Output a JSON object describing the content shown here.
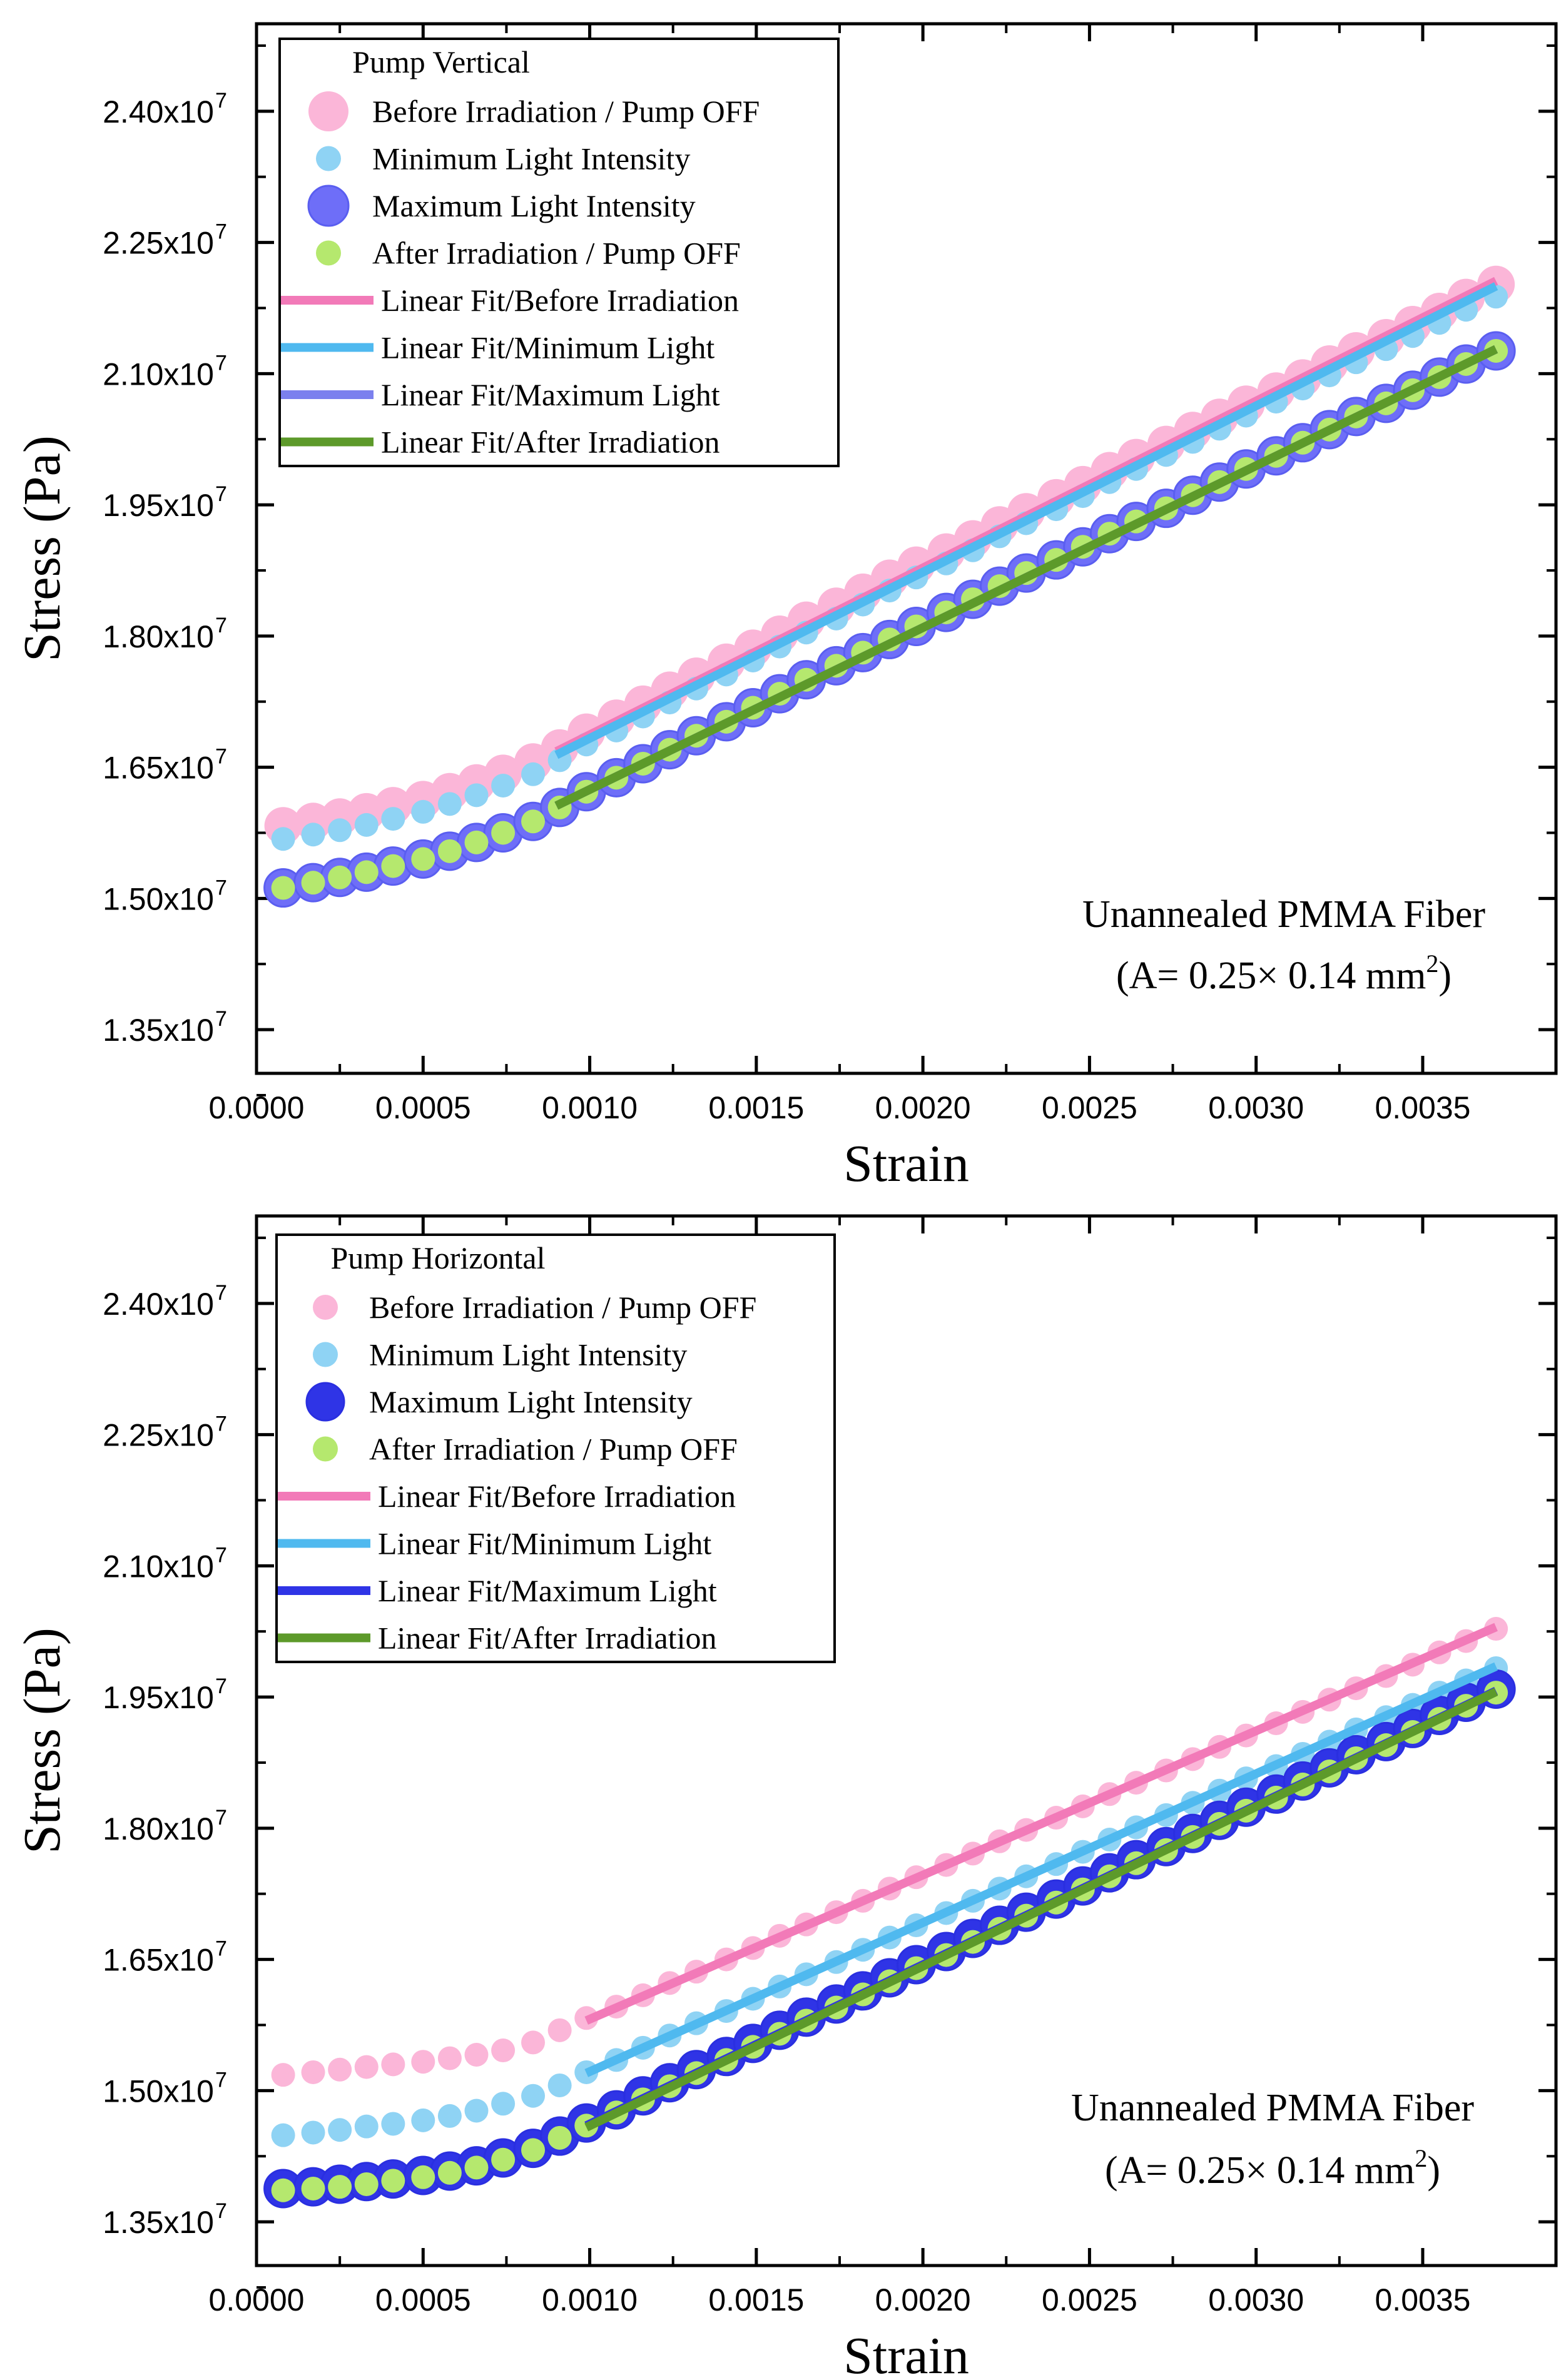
{
  "chart_data": [
    {
      "type": "scatter",
      "title": "",
      "xlabel": "Strain",
      "ylabel": "Stress (Pa)",
      "xlim": [
        0.0,
        0.0039
      ],
      "ylim": [
        13000000,
        25000000
      ],
      "xticks": [
        0.0,
        0.0005,
        0.001,
        0.0015,
        0.002,
        0.0025,
        0.003,
        0.0035
      ],
      "xtick_labels": [
        "0.0000",
        "0.0005",
        "0.0010",
        "0.0015",
        "0.0020",
        "0.0025",
        "0.0030",
        "0.0035"
      ],
      "yticks": [
        13500000,
        15000000,
        16500000,
        18000000,
        19500000,
        21000000,
        22500000,
        24000000
      ],
      "ytick_mantissas": [
        "1.35x10",
        "1.50x10",
        "1.65x10",
        "1.80x10",
        "1.95x10",
        "2.10x10",
        "2.25x10",
        "2.40x10"
      ],
      "ytick_exponent": "7",
      "legend_title": "Pump Vertical",
      "annotation_line1": "Unannealed  PMMA Fiber",
      "annotation_line2": "(A= 0.25× 0.14 mm",
      "annotation_sup": "2",
      "annotation_close": ")",
      "x": [
        8e-05,
        0.00017,
        0.00025,
        0.00033,
        0.00041,
        0.0005,
        0.00058,
        0.00066,
        0.00074,
        0.00083,
        0.00091,
        0.00099,
        0.00108,
        0.00116,
        0.00124,
        0.00132,
        0.00141,
        0.00149,
        0.00157,
        0.00165,
        0.00174,
        0.00182,
        0.0019,
        0.00198,
        0.00207,
        0.00215,
        0.00223,
        0.00231,
        0.0024,
        0.00248,
        0.00256,
        0.00264,
        0.00273,
        0.00281,
        0.00289,
        0.00297,
        0.00306,
        0.00314,
        0.00322,
        0.0033,
        0.00339,
        0.00347,
        0.00355,
        0.00363,
        0.00372
      ],
      "series": [
        {
          "name": "Before Irradiation / Pump OFF",
          "color": "#fbb6d8",
          "size": "large",
          "values": [
            15830000,
            15880000,
            15930000,
            15990000,
            16060000,
            16130000,
            16220000,
            16320000,
            16430000,
            16560000,
            16720000,
            16900000,
            17060000,
            17220000,
            17380000,
            17540000,
            17700000,
            17860000,
            18020000,
            18180000,
            18340000,
            18500000,
            18660000,
            18810000,
            18960000,
            19110000,
            19270000,
            19420000,
            19580000,
            19730000,
            19890000,
            20040000,
            20190000,
            20350000,
            20500000,
            20650000,
            20800000,
            20950000,
            21110000,
            21260000,
            21410000,
            21560000,
            21710000,
            21870000,
            22020000
          ]
        },
        {
          "name": "Minimum Light Intensity",
          "color": "#8fd3f4",
          "size": "small",
          "values": [
            15680000,
            15730000,
            15780000,
            15840000,
            15910000,
            15990000,
            16080000,
            16180000,
            16290000,
            16420000,
            16580000,
            16760000,
            16920000,
            17080000,
            17240000,
            17400000,
            17560000,
            17720000,
            17880000,
            18040000,
            18200000,
            18360000,
            18520000,
            18670000,
            18830000,
            18980000,
            19140000,
            19290000,
            19450000,
            19600000,
            19760000,
            19910000,
            20070000,
            20220000,
            20370000,
            20520000,
            20680000,
            20830000,
            20980000,
            21130000,
            21280000,
            21430000,
            21580000,
            21730000,
            21880000
          ]
        },
        {
          "name": "Maximum Light Intensity",
          "color": "#6e6ef8",
          "size": "large",
          "values": [
            15120000,
            15180000,
            15240000,
            15300000,
            15370000,
            15450000,
            15540000,
            15640000,
            15750000,
            15880000,
            16040000,
            16220000,
            16380000,
            16540000,
            16700000,
            16860000,
            17020000,
            17180000,
            17340000,
            17500000,
            17660000,
            17810000,
            17960000,
            18110000,
            18270000,
            18420000,
            18570000,
            18720000,
            18870000,
            19020000,
            19170000,
            19310000,
            19460000,
            19610000,
            19760000,
            19910000,
            20060000,
            20210000,
            20360000,
            20510000,
            20660000,
            20810000,
            20960000,
            21110000,
            21260000
          ]
        },
        {
          "name": "After Irradiation / Pump OFF",
          "color": "#b5e86e",
          "size": "small",
          "values": [
            15120000,
            15180000,
            15240000,
            15300000,
            15370000,
            15450000,
            15540000,
            15640000,
            15750000,
            15880000,
            16040000,
            16220000,
            16380000,
            16540000,
            16700000,
            16860000,
            17020000,
            17180000,
            17340000,
            17500000,
            17660000,
            17810000,
            17960000,
            18110000,
            18270000,
            18420000,
            18570000,
            18720000,
            18870000,
            19020000,
            19170000,
            19310000,
            19460000,
            19610000,
            19760000,
            19910000,
            20060000,
            20210000,
            20360000,
            20510000,
            20660000,
            20810000,
            20960000,
            21110000,
            21260000
          ]
        }
      ],
      "fits": [
        {
          "name": "Linear Fit/Before Irradiation",
          "color": "#f27ab8",
          "x": [
            0.0009,
            0.00372
          ],
          "y": [
            16680000,
            22060000
          ]
        },
        {
          "name": "Linear Fit/Minimum Light",
          "color": "#4fb9ef",
          "x": [
            0.0009,
            0.00372
          ],
          "y": [
            16640000,
            22000000
          ]
        },
        {
          "name": "Linear Fit/Maximum Light",
          "color": "#7b80ee",
          "x": [
            0.0009,
            0.00372
          ],
          "y": [
            16060000,
            21280000
          ]
        },
        {
          "name": "Linear Fit/After Irradiation",
          "color": "#5d9a2a",
          "x": [
            0.0009,
            0.00372
          ],
          "y": [
            16060000,
            21280000
          ]
        }
      ]
    },
    {
      "type": "scatter",
      "title": "",
      "xlabel": "Strain",
      "ylabel": "Stress (Pa)",
      "xlim": [
        0.0,
        0.0039
      ],
      "ylim": [
        13000000,
        25000000
      ],
      "xticks": [
        0.0,
        0.0005,
        0.001,
        0.0015,
        0.002,
        0.0025,
        0.003,
        0.0035
      ],
      "xtick_labels": [
        "0.0000",
        "0.0005",
        "0.0010",
        "0.0015",
        "0.0020",
        "0.0025",
        "0.0030",
        "0.0035"
      ],
      "yticks": [
        13500000,
        15000000,
        16500000,
        18000000,
        19500000,
        21000000,
        22500000,
        24000000
      ],
      "ytick_mantissas": [
        "1.35x10",
        "1.50x10",
        "1.65x10",
        "1.80x10",
        "1.95x10",
        "2.10x10",
        "2.25x10",
        "2.40x10"
      ],
      "ytick_exponent": "7",
      "legend_title": "Pump Horizontal",
      "annotation_line1": "Unannealed  PMMA Fiber",
      "annotation_line2": "(A= 0.25× 0.14 mm",
      "annotation_sup": "2",
      "annotation_close": ")",
      "x": [
        8e-05,
        0.00017,
        0.00025,
        0.00033,
        0.00041,
        0.0005,
        0.00058,
        0.00066,
        0.00074,
        0.00083,
        0.00091,
        0.00099,
        0.00108,
        0.00116,
        0.00124,
        0.00132,
        0.00141,
        0.00149,
        0.00157,
        0.00165,
        0.00174,
        0.00182,
        0.0019,
        0.00198,
        0.00207,
        0.00215,
        0.00223,
        0.00231,
        0.0024,
        0.00248,
        0.00256,
        0.00264,
        0.00273,
        0.00281,
        0.00289,
        0.00297,
        0.00306,
        0.00314,
        0.00322,
        0.0033,
        0.00339,
        0.00347,
        0.00355,
        0.00363,
        0.00372
      ],
      "series": [
        {
          "name": "Before Irradiation / Pump OFF",
          "color": "#fbb6d8",
          "size": "small",
          "values": [
            15180000,
            15210000,
            15240000,
            15270000,
            15300000,
            15330000,
            15370000,
            15410000,
            15460000,
            15550000,
            15690000,
            15830000,
            15960000,
            16090000,
            16230000,
            16360000,
            16500000,
            16630000,
            16770000,
            16900000,
            17040000,
            17170000,
            17310000,
            17440000,
            17580000,
            17710000,
            17850000,
            17980000,
            18120000,
            18250000,
            18390000,
            18520000,
            18660000,
            18790000,
            18930000,
            19060000,
            19200000,
            19330000,
            19470000,
            19600000,
            19740000,
            19870000,
            20010000,
            20140000,
            20280000
          ]
        },
        {
          "name": "Minimum Light Intensity",
          "color": "#8fd3f4",
          "size": "small",
          "values": [
            14490000,
            14520000,
            14550000,
            14590000,
            14620000,
            14660000,
            14710000,
            14770000,
            14850000,
            14940000,
            15060000,
            15210000,
            15350000,
            15490000,
            15630000,
            15770000,
            15910000,
            16050000,
            16190000,
            16330000,
            16470000,
            16610000,
            16750000,
            16890000,
            17030000,
            17170000,
            17310000,
            17450000,
            17590000,
            17730000,
            17870000,
            18010000,
            18150000,
            18290000,
            18430000,
            18570000,
            18710000,
            18850000,
            18990000,
            19130000,
            19270000,
            19410000,
            19550000,
            19690000,
            19830000
          ]
        },
        {
          "name": "Maximum Light Intensity",
          "color": "#2f34e6",
          "size": "large",
          "values": [
            13880000,
            13900000,
            13930000,
            13960000,
            13990000,
            14030000,
            14080000,
            14140000,
            14230000,
            14340000,
            14480000,
            14630000,
            14780000,
            14940000,
            15090000,
            15240000,
            15390000,
            15540000,
            15690000,
            15840000,
            15990000,
            16140000,
            16290000,
            16440000,
            16590000,
            16740000,
            16890000,
            17040000,
            17190000,
            17340000,
            17490000,
            17640000,
            17790000,
            17940000,
            18090000,
            18240000,
            18390000,
            18540000,
            18690000,
            18840000,
            18990000,
            19140000,
            19290000,
            19440000,
            19590000
          ]
        },
        {
          "name": "After Irradiation / Pump OFF",
          "color": "#b5e86e",
          "size": "small",
          "values": [
            13860000,
            13880000,
            13900000,
            13930000,
            13970000,
            14010000,
            14060000,
            14120000,
            14210000,
            14320000,
            14460000,
            14600000,
            14750000,
            14900000,
            15050000,
            15200000,
            15350000,
            15500000,
            15650000,
            15800000,
            15950000,
            16100000,
            16250000,
            16400000,
            16550000,
            16700000,
            16850000,
            17000000,
            17150000,
            17300000,
            17450000,
            17600000,
            17750000,
            17900000,
            18050000,
            18200000,
            18350000,
            18500000,
            18650000,
            18800000,
            18950000,
            19100000,
            19250000,
            19400000,
            19550000
          ]
        }
      ],
      "fits": [
        {
          "name": "Linear Fit/Before Irradiation",
          "color": "#f27ab8",
          "x": [
            0.00099,
            0.00372
          ],
          "y": [
            15800000,
            20300000
          ]
        },
        {
          "name": "Linear Fit/Minimum Light",
          "color": "#4fb9ef",
          "x": [
            0.00099,
            0.00372
          ],
          "y": [
            15200000,
            19850000
          ]
        },
        {
          "name": "Linear Fit/Maximum Light",
          "color": "#2f34e6",
          "x": [
            0.00099,
            0.00372
          ],
          "y": [
            14600000,
            19570000
          ]
        },
        {
          "name": "Linear Fit/After Irradiation",
          "color": "#5d9a2a",
          "x": [
            0.00099,
            0.00372
          ],
          "y": [
            14580000,
            19560000
          ]
        }
      ]
    }
  ]
}
